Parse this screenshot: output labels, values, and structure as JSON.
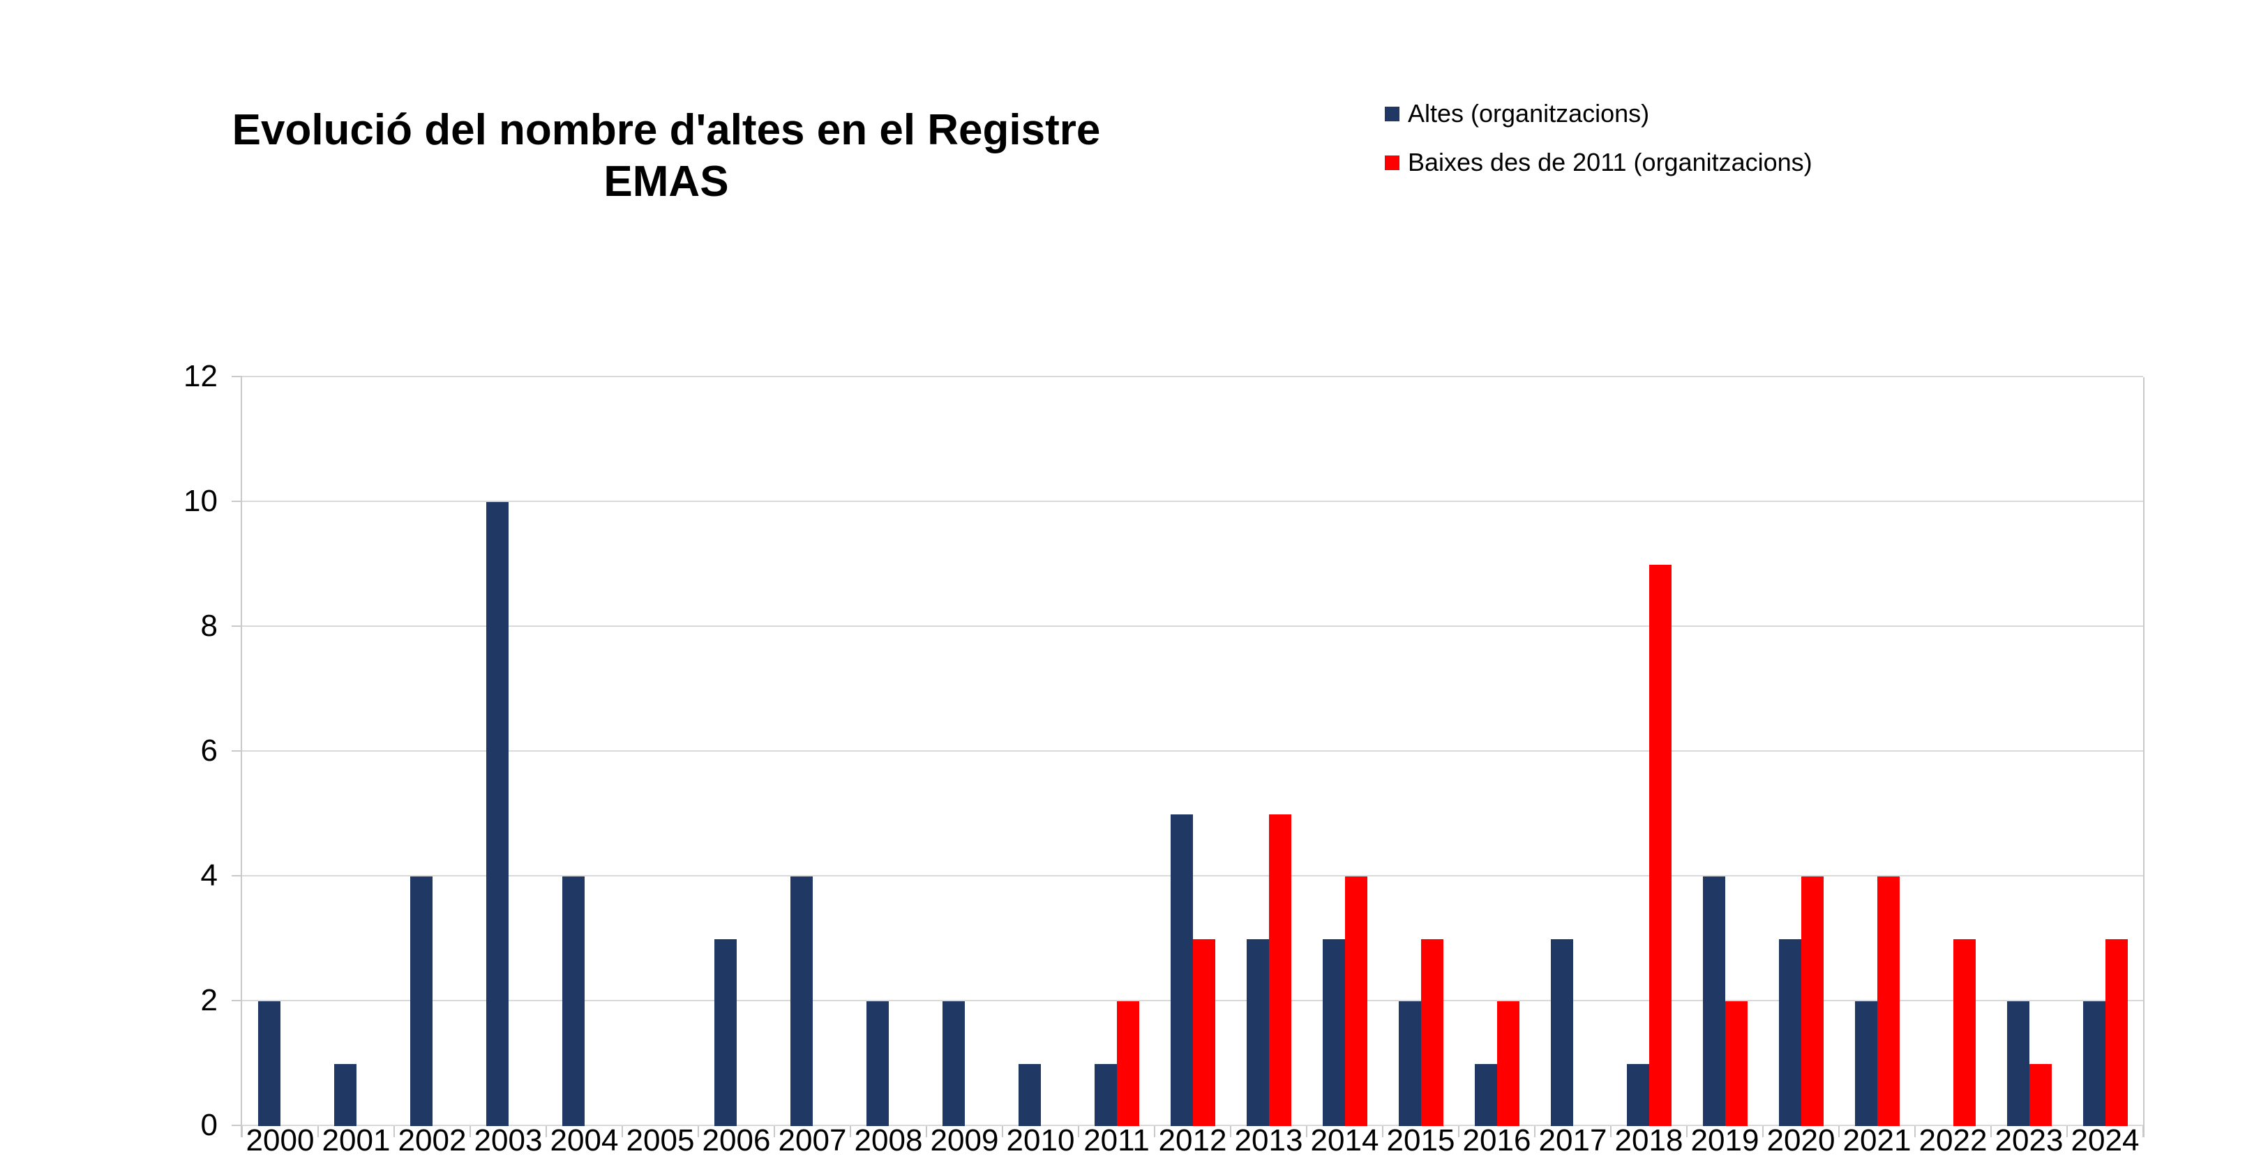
{
  "chart": {
    "title_line1": "Evolució del nombre d'altes en el Registre",
    "title_line2": "EMAS"
  },
  "chart_data": {
    "type": "bar",
    "title": "Evolució del nombre d'altes en el Registre EMAS",
    "categories": [
      "2000",
      "2001",
      "2002",
      "2003",
      "2004",
      "2005",
      "2006",
      "2007",
      "2008",
      "2009",
      "2010",
      "2011",
      "2012",
      "2013",
      "2014",
      "2015",
      "2016",
      "2017",
      "2018",
      "2019",
      "2020",
      "2021",
      "2022",
      "2023",
      "2024"
    ],
    "series": [
      {
        "name": "Altes (organitzacions)",
        "color": "#1F3864",
        "values": [
          2,
          1,
          4,
          10,
          4,
          0,
          3,
          4,
          2,
          2,
          1,
          1,
          5,
          3,
          3,
          2,
          1,
          3,
          1,
          4,
          3,
          2,
          0,
          2,
          2
        ]
      },
      {
        "name": "Baixes des de 2011 (organitzacions)",
        "color": "#FF0000",
        "values": [
          null,
          null,
          null,
          null,
          null,
          null,
          null,
          null,
          null,
          null,
          null,
          2,
          3,
          5,
          4,
          3,
          2,
          0,
          9,
          2,
          4,
          4,
          3,
          1,
          3
        ]
      }
    ],
    "xlabel": "",
    "ylabel": "",
    "ylim": [
      0,
      12
    ],
    "yticks": [
      0,
      2,
      4,
      6,
      8,
      10,
      12
    ],
    "grid": true,
    "gridline_color": "#D9D9D9",
    "axis_color": "#C9C9C9",
    "legend_position": "top-right"
  }
}
